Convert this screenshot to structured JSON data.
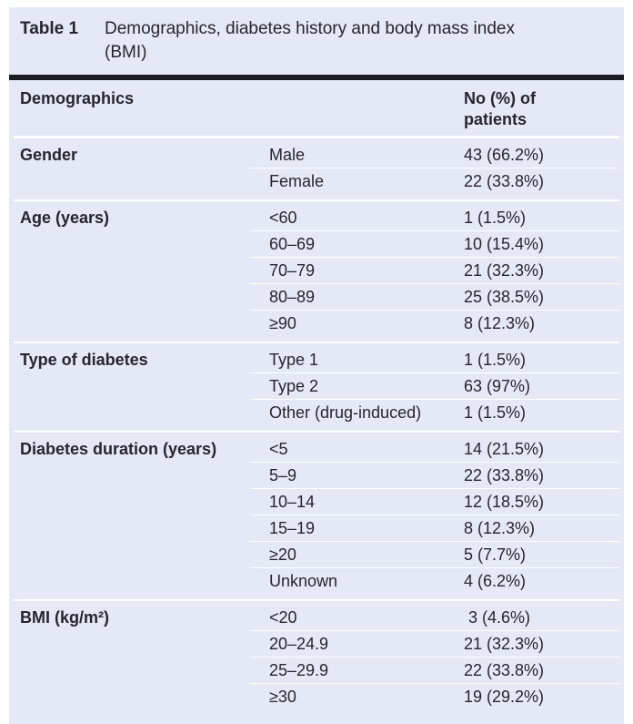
{
  "table": {
    "label": "Table 1",
    "caption_lines": [
      "Demographics, diabetes history and body mass index",
      "(BMI)"
    ],
    "columns": {
      "demographics": "Demographics",
      "patients": "No (%) of patients"
    },
    "sections": [
      {
        "category": "Gender",
        "rows": [
          {
            "label": "Male",
            "value": "43 (66.2%)"
          },
          {
            "label": "Female",
            "value": "22 (33.8%)"
          }
        ]
      },
      {
        "category": "Age (years)",
        "rows": [
          {
            "label": "<60",
            "value": "1 (1.5%)"
          },
          {
            "label": "60–69",
            "value": "10 (15.4%)"
          },
          {
            "label": "70–79",
            "value": "21 (32.3%)"
          },
          {
            "label": "80–89",
            "value": "25 (38.5%)"
          },
          {
            "label": "≥90",
            "value": "8 (12.3%)"
          }
        ]
      },
      {
        "category": "Type of diabetes",
        "rows": [
          {
            "label": "Type 1",
            "value": "1 (1.5%)"
          },
          {
            "label": "Type 2",
            "value": "63 (97%)"
          },
          {
            "label": "Other (drug-induced)",
            "value": "1 (1.5%)"
          }
        ]
      },
      {
        "category": "Diabetes duration (years)",
        "rows": [
          {
            "label": "<5",
            "value": "14 (21.5%)"
          },
          {
            "label": "5–9",
            "value": "22 (33.8%)"
          },
          {
            "label": "10–14",
            "value": "12 (18.5%)"
          },
          {
            "label": "15–19",
            "value": "8 (12.3%)"
          },
          {
            "label": "≥20",
            "value": "5 (7.7%)"
          },
          {
            "label": "Unknown",
            "value": "4 (6.2%)"
          }
        ]
      },
      {
        "category": "BMI (kg/m²)",
        "rows": [
          {
            "label": "<20",
            "value": " 3 (4.6%)"
          },
          {
            "label": "20–24.9",
            "value": "21 (32.3%)"
          },
          {
            "label": "25–29.9",
            "value": "22 (33.8%)"
          },
          {
            "label": "≥30",
            "value": "19 (29.2%)"
          }
        ]
      }
    ],
    "colors": {
      "panel_bg": "#e4e9f5",
      "rule": "#1c1c24",
      "text": "#282430",
      "separator": "#ffffff"
    }
  }
}
